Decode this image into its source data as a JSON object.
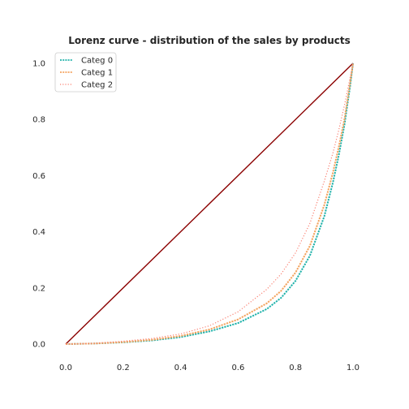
{
  "chart_data": {
    "type": "line",
    "title": "Lorenz curve - distribution of the sales by products",
    "xlabel": "",
    "ylabel": "",
    "xlim": [
      0.0,
      1.0
    ],
    "ylim": [
      0.0,
      1.0
    ],
    "x_ticks": [
      "0.0",
      "0.2",
      "0.4",
      "0.6",
      "0.8",
      "1.0"
    ],
    "y_ticks": [
      "0.0",
      "0.2",
      "0.4",
      "0.6",
      "0.8",
      "1.0"
    ],
    "grid": false,
    "legend_position": "top-left",
    "equality_line": {
      "x": [
        0.0,
        1.0
      ],
      "y": [
        0.0,
        1.0
      ],
      "color": "#8b0000"
    },
    "series": [
      {
        "name": "Categ 0",
        "color": "#20b2aa",
        "style": "dashed",
        "x": [
          0.0,
          0.1,
          0.2,
          0.3,
          0.4,
          0.5,
          0.6,
          0.7,
          0.75,
          0.8,
          0.85,
          0.9,
          0.93,
          0.95,
          0.97,
          0.99,
          1.0
        ],
        "y": [
          0.0,
          0.002,
          0.006,
          0.013,
          0.025,
          0.045,
          0.075,
          0.125,
          0.165,
          0.225,
          0.315,
          0.455,
          0.575,
          0.67,
          0.78,
          0.92,
          1.0
        ]
      },
      {
        "name": "Categ 1",
        "color": "#f4a460",
        "style": "dashed",
        "x": [
          0.0,
          0.1,
          0.2,
          0.3,
          0.4,
          0.5,
          0.6,
          0.7,
          0.75,
          0.8,
          0.85,
          0.9,
          0.93,
          0.95,
          0.97,
          0.99,
          1.0
        ],
        "y": [
          0.0,
          0.002,
          0.007,
          0.015,
          0.029,
          0.052,
          0.088,
          0.145,
          0.19,
          0.255,
          0.35,
          0.495,
          0.61,
          0.7,
          0.8,
          0.93,
          1.0
        ]
      },
      {
        "name": "Categ 2",
        "color": "#fa8072",
        "style": "dotted",
        "x": [
          0.0,
          0.1,
          0.2,
          0.3,
          0.4,
          0.5,
          0.6,
          0.7,
          0.75,
          0.8,
          0.85,
          0.9,
          0.93,
          0.95,
          0.97,
          0.99,
          1.0
        ],
        "y": [
          0.0,
          0.003,
          0.01,
          0.02,
          0.036,
          0.065,
          0.115,
          0.195,
          0.25,
          0.325,
          0.43,
          0.58,
          0.68,
          0.76,
          0.85,
          0.95,
          1.0
        ]
      }
    ]
  }
}
